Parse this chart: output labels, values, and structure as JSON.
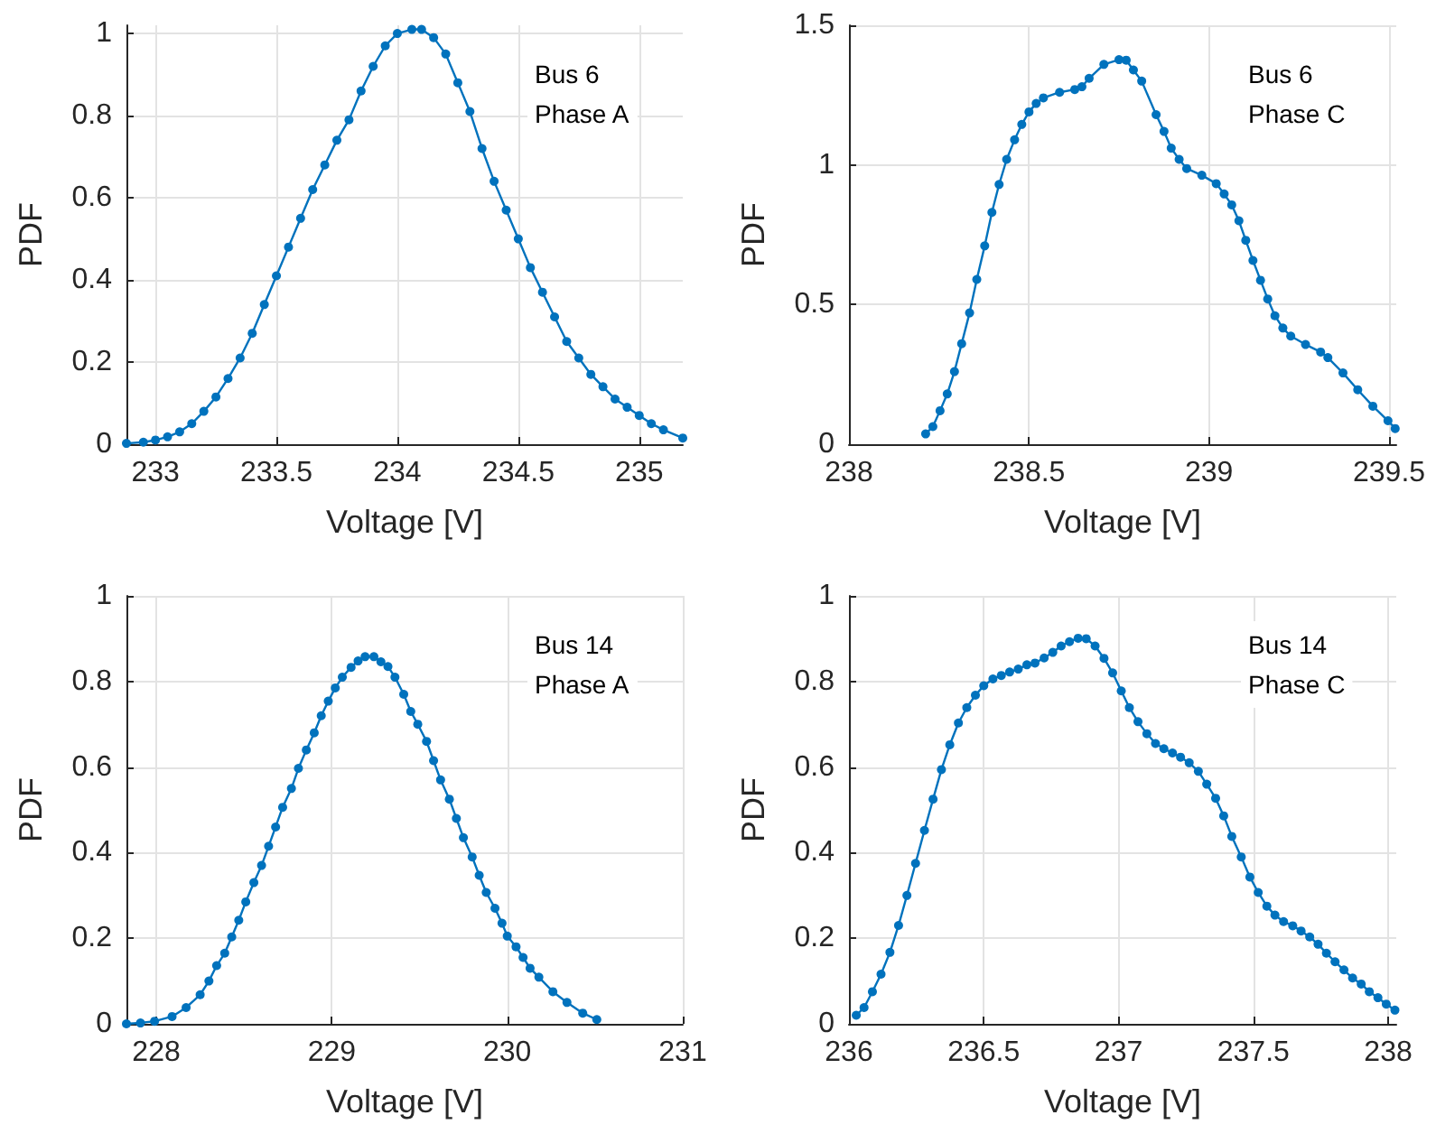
{
  "chart_data": [
    {
      "type": "line",
      "xlabel": "Voltage [V]",
      "ylabel": "PDF",
      "annotations": [
        "Bus 6\nPhase A"
      ],
      "xlim": [
        232.88,
        235.18
      ],
      "xticks": [
        233,
        233.5,
        234,
        234.5,
        235
      ],
      "ylim": [
        0,
        1.02
      ],
      "yticks": [
        0,
        0.2,
        0.4,
        0.6,
        0.8,
        1
      ],
      "grid": true,
      "marker": "circle",
      "line_style": "solid",
      "color": "#0072bd",
      "x": [
        232.88,
        232.95,
        233.0,
        233.05,
        233.1,
        233.15,
        233.2,
        233.25,
        233.3,
        233.35,
        233.4,
        233.45,
        233.5,
        233.55,
        233.6,
        233.65,
        233.7,
        233.75,
        233.8,
        233.85,
        233.9,
        233.95,
        234.0,
        234.06,
        234.1,
        234.15,
        234.2,
        234.25,
        234.3,
        234.35,
        234.4,
        234.45,
        234.5,
        234.55,
        234.6,
        234.65,
        234.7,
        234.75,
        234.8,
        234.85,
        234.9,
        234.95,
        235.0,
        235.05,
        235.1,
        235.18
      ],
      "values": [
        0.002,
        0.005,
        0.01,
        0.018,
        0.03,
        0.05,
        0.08,
        0.115,
        0.16,
        0.21,
        0.27,
        0.34,
        0.41,
        0.48,
        0.55,
        0.62,
        0.68,
        0.74,
        0.79,
        0.86,
        0.92,
        0.97,
        1.0,
        1.01,
        1.01,
        0.99,
        0.95,
        0.88,
        0.81,
        0.72,
        0.64,
        0.57,
        0.5,
        0.43,
        0.37,
        0.31,
        0.25,
        0.21,
        0.17,
        0.14,
        0.11,
        0.09,
        0.07,
        0.05,
        0.035,
        0.015
      ]
    },
    {
      "type": "line",
      "xlabel": "Voltage [V]",
      "ylabel": "PDF",
      "annotations": [
        "Bus 6\nPhase C"
      ],
      "xlim": [
        238,
        239.52
      ],
      "xticks": [
        238,
        238.5,
        239,
        239.5
      ],
      "ylim": [
        0,
        1.5
      ],
      "yticks": [
        0,
        0.5,
        1,
        1.5
      ],
      "grid": true,
      "marker": "circle",
      "line_style": "solid",
      "color": "#0072bd",
      "x": [
        238.213,
        238.233,
        238.253,
        238.273,
        238.293,
        238.313,
        238.335,
        238.355,
        238.377,
        238.397,
        238.417,
        238.438,
        238.46,
        238.48,
        238.5,
        238.52,
        238.54,
        238.585,
        238.627,
        238.647,
        238.667,
        238.708,
        238.75,
        238.77,
        238.79,
        238.813,
        238.853,
        238.875,
        238.895,
        238.917,
        238.938,
        238.98,
        239.02,
        239.042,
        239.063,
        239.083,
        239.102,
        239.122,
        239.143,
        239.163,
        239.183,
        239.205,
        239.227,
        239.268,
        239.31,
        239.33,
        239.372,
        239.413,
        239.455,
        239.497,
        239.517
      ],
      "values": [
        0.037,
        0.063,
        0.12,
        0.18,
        0.26,
        0.36,
        0.47,
        0.59,
        0.71,
        0.83,
        0.93,
        1.02,
        1.09,
        1.145,
        1.19,
        1.22,
        1.24,
        1.26,
        1.27,
        1.28,
        1.31,
        1.36,
        1.377,
        1.375,
        1.34,
        1.3,
        1.18,
        1.12,
        1.06,
        1.02,
        0.987,
        0.963,
        0.933,
        0.896,
        0.857,
        0.8,
        0.73,
        0.658,
        0.587,
        0.52,
        0.46,
        0.416,
        0.387,
        0.357,
        0.33,
        0.31,
        0.255,
        0.195,
        0.136,
        0.084,
        0.056
      ]
    },
    {
      "type": "line",
      "xlabel": "Voltage [V]",
      "ylabel": "PDF",
      "annotations": [
        "Bus 14\nPhase A"
      ],
      "xlim": [
        227.83,
        231
      ],
      "xticks": [
        228,
        229,
        230,
        231
      ],
      "ylim": [
        0,
        1
      ],
      "yticks": [
        0,
        0.2,
        0.4,
        0.6,
        0.8,
        1
      ],
      "grid": true,
      "marker": "circle",
      "line_style": "solid",
      "color": "#0072bd",
      "x": [
        227.83,
        227.91,
        227.99,
        228.09,
        228.17,
        228.25,
        228.3,
        228.344,
        228.39,
        228.43,
        228.47,
        228.51,
        228.556,
        228.6,
        228.64,
        228.68,
        228.72,
        228.77,
        228.81,
        228.855,
        228.9,
        228.94,
        228.98,
        229.02,
        229.06,
        229.11,
        229.15,
        229.19,
        229.24,
        229.28,
        229.32,
        229.36,
        229.41,
        229.45,
        229.49,
        229.54,
        229.58,
        229.62,
        229.67,
        229.71,
        229.75,
        229.8,
        229.84,
        229.88,
        229.93,
        229.97,
        230.0,
        230.05,
        230.09,
        230.13,
        230.18,
        230.26,
        230.34,
        230.43,
        230.51
      ],
      "values": [
        0.0,
        0.002,
        0.006,
        0.017,
        0.038,
        0.068,
        0.1,
        0.136,
        0.165,
        0.203,
        0.242,
        0.285,
        0.33,
        0.37,
        0.415,
        0.46,
        0.506,
        0.55,
        0.597,
        0.64,
        0.68,
        0.72,
        0.754,
        0.785,
        0.81,
        0.833,
        0.848,
        0.858,
        0.858,
        0.846,
        0.835,
        0.81,
        0.77,
        0.73,
        0.7,
        0.66,
        0.615,
        0.57,
        0.525,
        0.48,
        0.435,
        0.39,
        0.347,
        0.307,
        0.27,
        0.235,
        0.205,
        0.18,
        0.155,
        0.13,
        0.109,
        0.075,
        0.05,
        0.025,
        0.01
      ]
    },
    {
      "type": "line",
      "xlabel": "Voltage [V]",
      "ylabel": "PDF",
      "annotations": [
        "Bus 14\nPhase C"
      ],
      "xlim": [
        236,
        238.03
      ],
      "xticks": [
        236,
        236.5,
        237,
        237.5,
        238
      ],
      "ylim": [
        0,
        1
      ],
      "yticks": [
        0,
        0.2,
        0.4,
        0.6,
        0.8,
        1
      ],
      "grid": true,
      "marker": "circle",
      "line_style": "solid",
      "color": "#0072bd",
      "x": [
        236.027,
        236.056,
        236.087,
        236.119,
        236.152,
        236.184,
        236.215,
        236.247,
        236.28,
        236.312,
        236.343,
        236.374,
        236.406,
        236.437,
        236.469,
        236.5,
        236.534,
        236.565,
        236.596,
        236.628,
        236.66,
        236.69,
        236.724,
        236.756,
        236.787,
        236.818,
        236.85,
        236.88,
        236.913,
        236.946,
        236.978,
        237.01,
        237.04,
        237.072,
        237.105,
        237.137,
        237.168,
        237.2,
        237.23,
        237.262,
        237.296,
        237.327,
        237.36,
        237.39,
        237.42,
        237.455,
        237.487,
        237.518,
        237.55,
        237.58,
        237.612,
        237.646,
        237.677,
        237.709,
        237.74,
        237.771,
        237.803,
        237.836,
        237.868,
        237.9,
        237.93,
        237.962,
        237.993,
        238.025
      ],
      "values": [
        0.02,
        0.038,
        0.075,
        0.116,
        0.167,
        0.23,
        0.3,
        0.375,
        0.452,
        0.525,
        0.594,
        0.652,
        0.703,
        0.739,
        0.768,
        0.79,
        0.806,
        0.814,
        0.822,
        0.829,
        0.839,
        0.843,
        0.855,
        0.868,
        0.883,
        0.893,
        0.901,
        0.9,
        0.883,
        0.854,
        0.82,
        0.778,
        0.739,
        0.706,
        0.678,
        0.655,
        0.643,
        0.633,
        0.623,
        0.61,
        0.59,
        0.56,
        0.527,
        0.486,
        0.438,
        0.39,
        0.343,
        0.307,
        0.275,
        0.254,
        0.239,
        0.229,
        0.217,
        0.203,
        0.186,
        0.165,
        0.145,
        0.126,
        0.107,
        0.093,
        0.075,
        0.061,
        0.046,
        0.032
      ]
    }
  ]
}
